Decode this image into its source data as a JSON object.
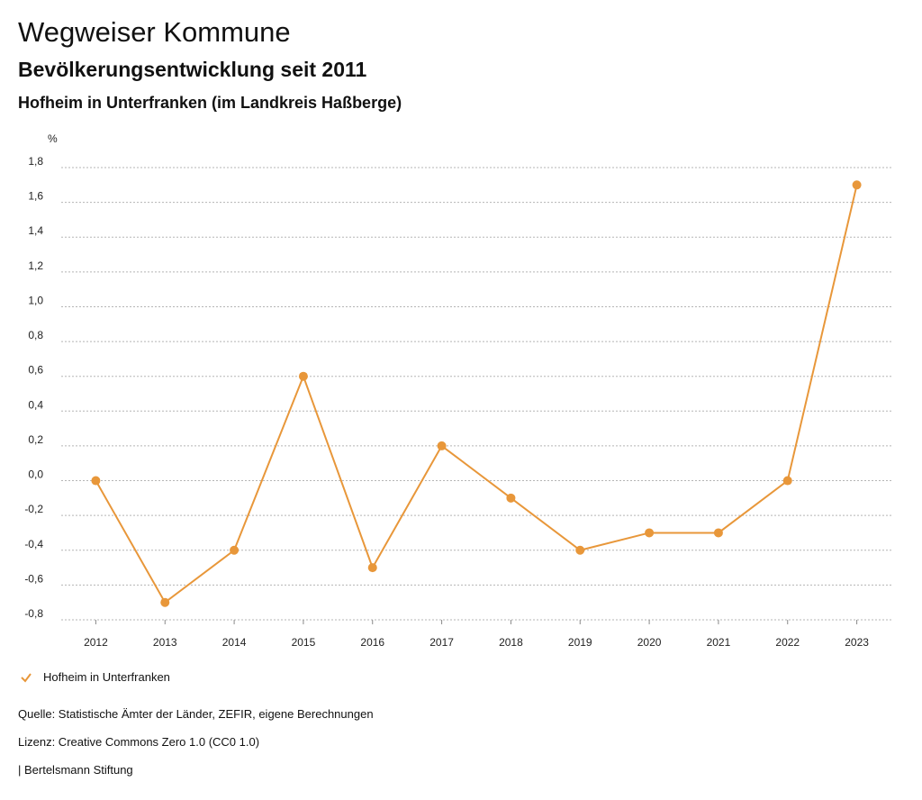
{
  "header": {
    "title": "Wegweiser Kommune",
    "subtitle": "Bevölkerungsentwicklung seit 2011",
    "place": "Hofheim in Unterfranken (im Landkreis Haßberge)"
  },
  "chart_data": {
    "type": "line",
    "unit_label": "%",
    "x": [
      "2012",
      "2013",
      "2014",
      "2015",
      "2016",
      "2017",
      "2018",
      "2019",
      "2020",
      "2021",
      "2022",
      "2023"
    ],
    "series": [
      {
        "name": "Hofheim in Unterfranken",
        "color": "#E8973A",
        "values": [
          0.0,
          -0.7,
          -0.4,
          0.6,
          -0.5,
          0.2,
          -0.1,
          -0.4,
          -0.3,
          -0.3,
          0.0,
          1.7
        ]
      }
    ],
    "ylim": [
      -0.8,
      1.8
    ],
    "yticks": [
      "-0,8",
      "-0,6",
      "-0,4",
      "-0,2",
      "0,0",
      "0,2",
      "0,4",
      "0,6",
      "0,8",
      "1,0",
      "1,2",
      "1,4",
      "1,6",
      "1,8"
    ],
    "grid": true,
    "legend_position": "bottom-left"
  },
  "legend": {
    "label": "Hofheim in Unterfranken",
    "icon": "check-icon",
    "color": "#E8973A"
  },
  "footer": {
    "source": "Quelle: Statistische Ämter der Länder, ZEFIR, eigene Berechnungen",
    "license": "Lizenz: Creative Commons Zero 1.0 (CC0 1.0)",
    "brand": "| Bertelsmann Stiftung"
  }
}
